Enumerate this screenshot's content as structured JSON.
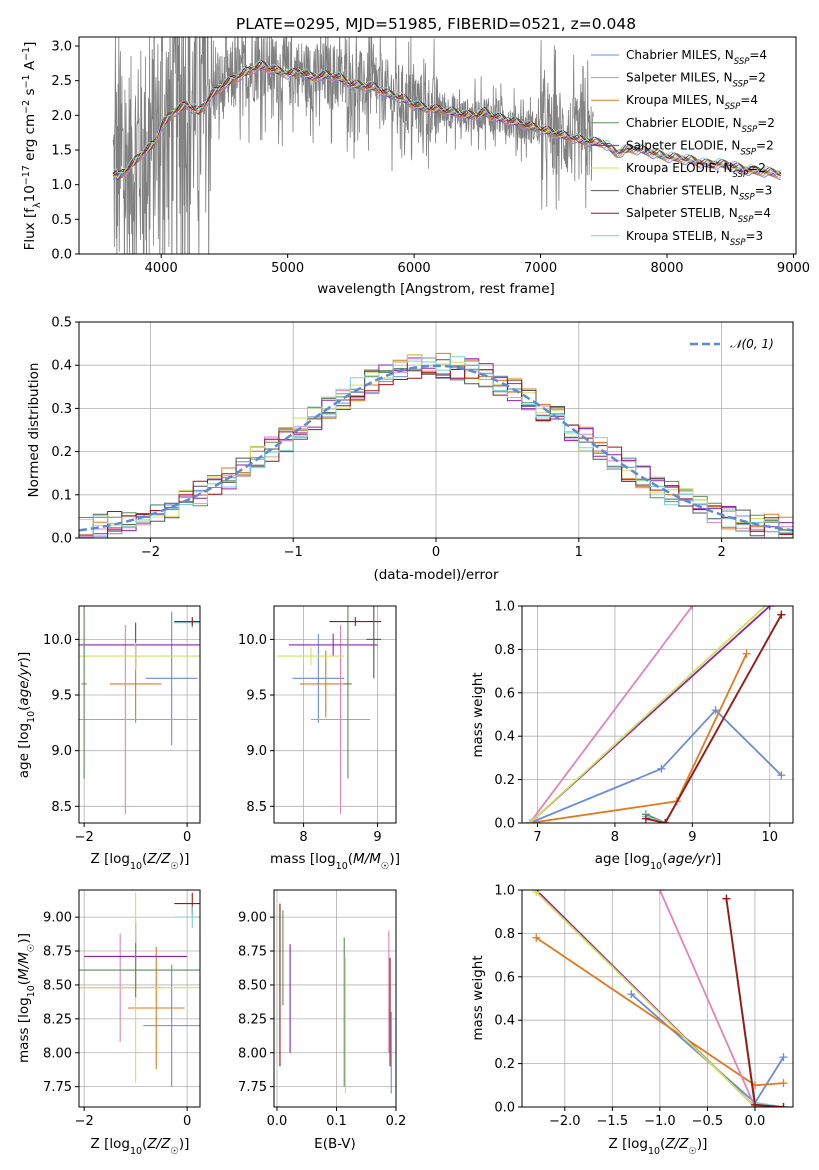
{
  "colors": [
    "#6a8dd6",
    "#e482b9",
    "#e07a1f",
    "#5b8f5b",
    "#8f22ad",
    "#d0e25a",
    "#555555",
    "#a31515",
    "#79d2d8"
  ],
  "figure": {
    "title": "PLATE=0295, MJD=51985, FIBERID=0521, z=0.048"
  },
  "chart_data": [
    {
      "id": "spectrum",
      "type": "line",
      "xlabel": "wavelength [Angstrom, rest frame]",
      "ylabel": "Flux [f_λ10^-17 erg cm^-2 s^-1 A^-1]",
      "xlim": [
        3350,
        9020
      ],
      "ylim": [
        0,
        3.13
      ],
      "xticks": [
        4000,
        5000,
        6000,
        7000,
        8000,
        9000
      ],
      "yticks": [
        0.0,
        0.5,
        1.0,
        1.5,
        2.0,
        2.5,
        3.0
      ],
      "grid": false,
      "legend_position": "top-right",
      "legend": [
        {
          "label": "Chabrier MILES, N",
          "nssp": "4"
        },
        {
          "label": "Salpeter MILES, N",
          "nssp": "2"
        },
        {
          "label": "Kroupa MILES, N",
          "nssp": "4"
        },
        {
          "label": "Chabrier ELODIE, N",
          "nssp": "2"
        },
        {
          "label": "Salpeter ELODIE, N",
          "nssp": "2"
        },
        {
          "label": "Kroupa ELODIE, N",
          "nssp": "2"
        },
        {
          "label": "Chabrier STELIB, N",
          "nssp": "3"
        },
        {
          "label": "Salpeter STELIB, N",
          "nssp": "4"
        },
        {
          "label": "Kroupa STELIB, N",
          "nssp": "3"
        }
      ],
      "continuum": [
        [
          3650,
          1.1
        ],
        [
          3750,
          1.25
        ],
        [
          3850,
          1.45
        ],
        [
          3950,
          1.6
        ],
        [
          4000,
          1.85
        ],
        [
          4100,
          2.05
        ],
        [
          4200,
          2.15
        ],
        [
          4300,
          2.05
        ],
        [
          4400,
          2.3
        ],
        [
          4500,
          2.45
        ],
        [
          4600,
          2.55
        ],
        [
          4700,
          2.65
        ],
        [
          4800,
          2.72
        ],
        [
          4900,
          2.65
        ],
        [
          5000,
          2.6
        ],
        [
          5100,
          2.62
        ],
        [
          5200,
          2.55
        ],
        [
          5300,
          2.58
        ],
        [
          5400,
          2.55
        ],
        [
          5500,
          2.45
        ],
        [
          5600,
          2.42
        ],
        [
          5700,
          2.4
        ],
        [
          5800,
          2.3
        ],
        [
          5900,
          2.25
        ],
        [
          6000,
          2.15
        ],
        [
          6100,
          2.1
        ],
        [
          6200,
          2.08
        ],
        [
          6300,
          2.05
        ],
        [
          6400,
          2.0
        ],
        [
          6500,
          2.0
        ],
        [
          6560,
          2.05
        ],
        [
          6600,
          2.0
        ],
        [
          6700,
          1.95
        ],
        [
          6800,
          1.9
        ],
        [
          6900,
          1.85
        ],
        [
          7000,
          1.8
        ],
        [
          7100,
          1.75
        ],
        [
          7200,
          1.7
        ],
        [
          7300,
          1.65
        ],
        [
          7400,
          1.62
        ],
        [
          7500,
          1.6
        ],
        [
          7600,
          1.45
        ],
        [
          7700,
          1.52
        ],
        [
          7800,
          1.5
        ],
        [
          7900,
          1.45
        ],
        [
          8000,
          1.4
        ],
        [
          8100,
          1.38
        ],
        [
          8200,
          1.35
        ],
        [
          8300,
          1.3
        ],
        [
          8400,
          1.3
        ],
        [
          8500,
          1.28
        ],
        [
          8600,
          1.22
        ],
        [
          8700,
          1.2
        ],
        [
          8800,
          1.18
        ],
        [
          8900,
          1.15
        ]
      ],
      "data_range": [
        3620,
        7420
      ]
    },
    {
      "id": "residuals",
      "type": "line",
      "xlabel": "(data-model)/error",
      "ylabel": "Normed distribution",
      "xlim": [
        -2.5,
        2.5
      ],
      "ylim": [
        0,
        0.5
      ],
      "xticks": [
        -2,
        -1,
        0,
        1,
        2
      ],
      "yticks": [
        0.0,
        0.1,
        0.2,
        0.3,
        0.4,
        0.5
      ],
      "grid": true,
      "legend_position": "top-right",
      "legend_label": "𝒩(0, 1)",
      "normal": {
        "mean": 0,
        "sigma": 1
      }
    },
    {
      "id": "z-age",
      "type": "scatter",
      "xlabel": "Z [log10(Z/Z☉)]",
      "ylabel": "age [log10(age/yr)]",
      "xlim": [
        -2.1,
        0.25
      ],
      "ylim": [
        8.35,
        10.3
      ],
      "xticks": [
        -2,
        0
      ],
      "yticks": [
        8.5,
        9.0,
        9.5,
        10.0
      ],
      "grid": true,
      "points": [
        {
          "x": -1.0,
          "y": 9.6,
          "xerr": 0.5,
          "yerr": 0.35,
          "c": 2
        },
        {
          "x": -0.3,
          "y": 9.65,
          "xerr": 0.5,
          "yerr": 0.6,
          "c": 0
        },
        {
          "x": -1.2,
          "y": 9.28,
          "xerr": 1.4,
          "yerr": 0.85,
          "c": 1
        },
        {
          "x": -1.0,
          "y": 9.95,
          "xerr": 1.9,
          "yerr": 0.2,
          "c": 4
        },
        {
          "x": -1.0,
          "y": 9.85,
          "xerr": 1.9,
          "yerr": 0.12,
          "c": 5
        },
        {
          "x": -2.0,
          "y": 9.6,
          "xerr": 0.05,
          "yerr": 0.85,
          "c": 3
        },
        {
          "x": 0.1,
          "y": 10.15,
          "xerr": 0.35,
          "yerr": 0.05,
          "c": 8
        },
        {
          "x": 0.1,
          "y": 10.16,
          "xerr": 0.35,
          "yerr": 0.04,
          "c": 7
        }
      ]
    },
    {
      "id": "mass-age",
      "type": "scatter",
      "xlabel": "mass [log10(M/M☉)]",
      "ylabel": "",
      "xlim": [
        7.6,
        9.25
      ],
      "ylim": [
        8.35,
        10.3
      ],
      "xticks": [
        8,
        9
      ],
      "yticks": [
        8.5,
        9.0,
        9.5,
        10.0
      ],
      "grid": true,
      "points": [
        {
          "x": 8.2,
          "y": 9.65,
          "xerr": 0.35,
          "yerr": 0.4,
          "c": 0
        },
        {
          "x": 8.3,
          "y": 9.6,
          "xerr": 0.35,
          "yerr": 0.3,
          "c": 2
        },
        {
          "x": 8.5,
          "y": 9.28,
          "xerr": 0.4,
          "yerr": 0.85,
          "c": 1
        },
        {
          "x": 8.4,
          "y": 9.95,
          "xerr": 0.6,
          "yerr": 0.1,
          "c": 4
        },
        {
          "x": 8.1,
          "y": 9.85,
          "xerr": 0.45,
          "yerr": 0.08,
          "c": 5
        },
        {
          "x": 8.6,
          "y": 9.6,
          "xerr": 0.05,
          "yerr": 0.85,
          "c": 3
        },
        {
          "x": 8.7,
          "y": 10.16,
          "xerr": 0.35,
          "yerr": 0.04,
          "c": 7
        },
        {
          "x": 8.95,
          "y": 10.0,
          "xerr": 0.1,
          "yerr": 0.35,
          "c": 6
        }
      ]
    },
    {
      "id": "age-weight",
      "type": "line",
      "xlabel": "age [log10(age/yr)]",
      "ylabel": "mass weight",
      "xlim": [
        6.8,
        10.3
      ],
      "ylim": [
        0,
        1
      ],
      "xticks": [
        7,
        8,
        9,
        10
      ],
      "yticks": [
        0.0,
        0.2,
        0.4,
        0.6,
        0.8,
        1.0
      ],
      "grid": true,
      "series": [
        {
          "c": 0,
          "pts": [
            [
              6.9,
              0.0
            ],
            [
              8.6,
              0.25
            ],
            [
              9.3,
              0.52
            ],
            [
              10.15,
              0.22
            ]
          ]
        },
        {
          "c": 2,
          "pts": [
            [
              6.9,
              0.0
            ],
            [
              8.8,
              0.1
            ],
            [
              9.7,
              0.78
            ]
          ]
        },
        {
          "c": 1,
          "pts": [
            [
              6.9,
              0.0
            ],
            [
              9.0,
              1.0
            ]
          ]
        },
        {
          "c": 4,
          "pts": [
            [
              6.9,
              0.0
            ],
            [
              10.0,
              1.0
            ]
          ]
        },
        {
          "c": 5,
          "pts": [
            [
              6.9,
              0.0
            ],
            [
              10.0,
              1.02
            ]
          ]
        },
        {
          "c": 3,
          "pts": [
            [
              8.4,
              0.04
            ],
            [
              8.65,
              0.0
            ],
            [
              10.15,
              0.96
            ]
          ]
        },
        {
          "c": 8,
          "pts": [
            [
              8.4,
              0.03
            ],
            [
              8.65,
              0.0
            ],
            [
              10.15,
              0.96
            ]
          ]
        },
        {
          "c": 7,
          "pts": [
            [
              8.4,
              0.02
            ],
            [
              8.65,
              0.0
            ],
            [
              10.15,
              0.96
            ]
          ]
        }
      ]
    },
    {
      "id": "z-mass",
      "type": "scatter",
      "xlabel": "Z [log10(Z/Z☉)]",
      "ylabel": "mass [log10(M/M☉)]",
      "xlim": [
        -2.1,
        0.25
      ],
      "ylim": [
        7.6,
        9.2
      ],
      "xticks": [
        -2,
        0
      ],
      "yticks": [
        7.75,
        8.0,
        8.25,
        8.5,
        8.75,
        9.0
      ],
      "grid": true,
      "points": [
        {
          "x": -0.3,
          "y": 8.2,
          "xerr": 0.55,
          "yerr": 0.45,
          "c": 0
        },
        {
          "x": -0.6,
          "y": 8.33,
          "xerr": 0.55,
          "yerr": 0.45,
          "c": 2
        },
        {
          "x": -1.3,
          "y": 8.48,
          "xerr": 0.8,
          "yerr": 0.4,
          "c": 1
        },
        {
          "x": -1.0,
          "y": 8.71,
          "xerr": 1.0,
          "yerr": 0.25,
          "c": 4
        },
        {
          "x": -1.0,
          "y": 8.48,
          "xerr": 1.9,
          "yerr": 0.7,
          "c": 5
        },
        {
          "x": -1.0,
          "y": 8.61,
          "xerr": 1.9,
          "yerr": 0.2,
          "c": 3
        },
        {
          "x": 0.1,
          "y": 9.1,
          "xerr": 0.35,
          "yerr": 0.08,
          "c": 7
        },
        {
          "x": 0.1,
          "y": 9.0,
          "xerr": 0.35,
          "yerr": 0.08,
          "c": 8
        }
      ]
    },
    {
      "id": "ebv-mass",
      "type": "scatter",
      "xlabel": "E(B-V)",
      "ylabel": "",
      "xlim": [
        -0.005,
        0.2
      ],
      "ylim": [
        7.6,
        9.2
      ],
      "xticks": [
        0.0,
        0.1,
        0.2
      ],
      "yticks": [
        7.75,
        8.0,
        8.25,
        8.5,
        8.75,
        9.0
      ],
      "grid": true,
      "points": [
        {
          "x": 0.005,
          "y": 8.5,
          "xerr": 0,
          "yerr": 0.6,
          "c": 7
        },
        {
          "x": 0.01,
          "y": 8.7,
          "xerr": 0,
          "yerr": 0.35,
          "c": 3
        },
        {
          "x": 0.022,
          "y": 8.4,
          "xerr": 0,
          "yerr": 0.4,
          "c": 4
        },
        {
          "x": 0.113,
          "y": 8.3,
          "xerr": 0,
          "yerr": 0.55,
          "c": 3
        },
        {
          "x": 0.115,
          "y": 8.2,
          "xerr": 0,
          "yerr": 0.5,
          "c": 5
        },
        {
          "x": 0.188,
          "y": 8.45,
          "xerr": 0,
          "yerr": 0.45,
          "c": 1
        },
        {
          "x": 0.19,
          "y": 8.3,
          "xerr": 0,
          "yerr": 0.4,
          "c": 7
        },
        {
          "x": 0.192,
          "y": 8.0,
          "xerr": 0,
          "yerr": 0.3,
          "c": 0
        }
      ]
    },
    {
      "id": "z-weight",
      "type": "line",
      "xlabel": "Z [log10(Z/Z☉)]",
      "ylabel": "mass weight",
      "xlim": [
        -2.45,
        0.4
      ],
      "ylim": [
        0,
        1
      ],
      "xticks": [
        -2.0,
        -1.5,
        -1.0,
        -0.5,
        0.0
      ],
      "yticks": [
        0.0,
        0.2,
        0.4,
        0.6,
        0.8,
        1.0
      ],
      "grid": true,
      "series": [
        {
          "c": 0,
          "pts": [
            [
              -1.3,
              0.52
            ],
            [
              0.0,
              0.02
            ],
            [
              0.3,
              0.23
            ]
          ]
        },
        {
          "c": 2,
          "pts": [
            [
              -2.3,
              0.78
            ],
            [
              0.0,
              0.1
            ],
            [
              0.3,
              0.11
            ]
          ]
        },
        {
          "c": 1,
          "pts": [
            [
              -1.0,
              1.0
            ],
            [
              0.0,
              0.0
            ]
          ]
        },
        {
          "c": 4,
          "pts": [
            [
              -2.3,
              1.0
            ],
            [
              0.0,
              0.0
            ]
          ]
        },
        {
          "c": 5,
          "pts": [
            [
              -2.3,
              0.99
            ],
            [
              0.0,
              0.0
            ]
          ]
        },
        {
          "c": 3,
          "pts": [
            [
              -0.3,
              0.96
            ],
            [
              0.0,
              0.0
            ],
            [
              0.3,
              0.0
            ]
          ]
        },
        {
          "c": 8,
          "pts": [
            [
              -0.3,
              0.96
            ],
            [
              0.0,
              0.02
            ],
            [
              0.3,
              0.0
            ]
          ]
        },
        {
          "c": 7,
          "pts": [
            [
              -0.3,
              0.96
            ],
            [
              0.0,
              0.01
            ],
            [
              0.3,
              0.0
            ]
          ]
        }
      ]
    }
  ]
}
